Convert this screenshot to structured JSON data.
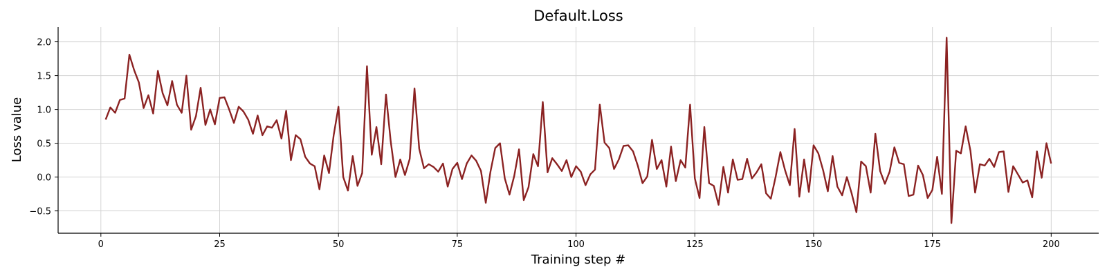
{
  "chart_data": {
    "type": "line",
    "title": "Default.Loss",
    "xlabel": "Training step #",
    "ylabel": "Loss value",
    "xlim": [
      -9,
      210
    ],
    "ylim": [
      -0.83,
      2.22
    ],
    "xticks": [
      0,
      25,
      50,
      75,
      100,
      125,
      150,
      175,
      200
    ],
    "yticks": [
      -0.5,
      0.0,
      0.5,
      1.0,
      1.5,
      2.0
    ],
    "xtick_labels": [
      "0",
      "25",
      "50",
      "75",
      "100",
      "125",
      "150",
      "175",
      "200"
    ],
    "ytick_labels": [
      "−0.5",
      "0.0",
      "0.5",
      "1.0",
      "1.5",
      "2.0"
    ],
    "grid": true,
    "line_color": "#8b2222",
    "series": [
      {
        "x": [
          1,
          2,
          3,
          4,
          5,
          6,
          7,
          8,
          9,
          10,
          11,
          12,
          13,
          14,
          15,
          16,
          17,
          18,
          19,
          20,
          21,
          22,
          23,
          24,
          25,
          26,
          27,
          28,
          29,
          30,
          31,
          32,
          33,
          34,
          35,
          36,
          37,
          38,
          39,
          40,
          41,
          42,
          43,
          44,
          45,
          46,
          47,
          48,
          49,
          50,
          51,
          52,
          53,
          54,
          55,
          56,
          57,
          58,
          59,
          60,
          61,
          62,
          63,
          64,
          65,
          66,
          67,
          68,
          69,
          70,
          71,
          72,
          73,
          74,
          75,
          76,
          77,
          78,
          79,
          80,
          81,
          82,
          83,
          84,
          85,
          86,
          87,
          88,
          89,
          90,
          91,
          92,
          93,
          94,
          95,
          96,
          97,
          98,
          99,
          100,
          101,
          102,
          103,
          104,
          105,
          106,
          107,
          108,
          109,
          110,
          111,
          112,
          113,
          114,
          115,
          116,
          117,
          118,
          119,
          120,
          121,
          122,
          123,
          124,
          125,
          126,
          127,
          128,
          129,
          130,
          131,
          132,
          133,
          134,
          135,
          136,
          137,
          138,
          139,
          140,
          141,
          142,
          143,
          144,
          145,
          146,
          147,
          148,
          149,
          150,
          151,
          152,
          153,
          154,
          155,
          156,
          157,
          158,
          159,
          160,
          161,
          162,
          163,
          164,
          165,
          166,
          167,
          168,
          169,
          170,
          171,
          172,
          173,
          174,
          175,
          176,
          177,
          178,
          179,
          180,
          181,
          182,
          183,
          184,
          185,
          186,
          187,
          188,
          189,
          190,
          191,
          192,
          193,
          194,
          195,
          196,
          197,
          198,
          199,
          200
        ],
        "values": [
          0.85,
          1.03,
          0.95,
          1.14,
          1.16,
          1.81,
          1.58,
          1.4,
          1.02,
          1.21,
          0.94,
          1.57,
          1.24,
          1.06,
          1.42,
          1.07,
          0.95,
          1.5,
          0.7,
          0.9,
          1.32,
          0.77,
          1.0,
          0.78,
          1.17,
          1.18,
          1.0,
          0.8,
          1.04,
          0.97,
          0.85,
          0.64,
          0.91,
          0.62,
          0.75,
          0.73,
          0.84,
          0.57,
          0.98,
          0.25,
          0.62,
          0.56,
          0.3,
          0.2,
          0.16,
          -0.18,
          0.32,
          0.06,
          0.62,
          1.04,
          0.0,
          -0.2,
          0.31,
          -0.13,
          0.06,
          1.64,
          0.33,
          0.74,
          0.19,
          1.22,
          0.53,
          0.0,
          0.26,
          0.03,
          0.27,
          1.31,
          0.42,
          0.13,
          0.19,
          0.15,
          0.08,
          0.2,
          -0.14,
          0.12,
          0.21,
          -0.03,
          0.2,
          0.32,
          0.24,
          0.09,
          -0.38,
          0.08,
          0.43,
          0.5,
          -0.02,
          -0.26,
          0.02,
          0.41,
          -0.34,
          -0.15,
          0.34,
          0.16,
          1.11,
          0.07,
          0.28,
          0.19,
          0.09,
          0.25,
          0.0,
          0.16,
          0.08,
          -0.12,
          0.04,
          0.11,
          1.07,
          0.51,
          0.43,
          0.12,
          0.26,
          0.46,
          0.47,
          0.38,
          0.17,
          -0.09,
          0.01,
          0.55,
          0.12,
          0.25,
          -0.14,
          0.45,
          -0.06,
          0.25,
          0.14,
          1.07,
          -0.02,
          -0.31,
          0.74,
          -0.09,
          -0.13,
          -0.41,
          0.15,
          -0.23,
          0.26,
          -0.04,
          -0.03,
          0.27,
          -0.02,
          0.07,
          0.19,
          -0.24,
          -0.32,
          0.0,
          0.37,
          0.1,
          -0.12,
          0.71,
          -0.29,
          0.26,
          -0.22,
          0.47,
          0.35,
          0.1,
          -0.21,
          0.31,
          -0.14,
          -0.27,
          0.0,
          -0.24,
          -0.52,
          0.23,
          0.16,
          -0.23,
          0.64,
          0.09,
          -0.1,
          0.08,
          0.44,
          0.21,
          0.19,
          -0.28,
          -0.26,
          0.17,
          0.03,
          -0.31,
          -0.19,
          0.3,
          -0.25,
          2.06,
          -0.68,
          0.39,
          0.35,
          0.75,
          0.39,
          -0.23,
          0.19,
          0.17,
          0.27,
          0.15,
          0.37,
          0.38,
          -0.22,
          0.16,
          0.04,
          -0.08,
          -0.05,
          -0.3,
          0.38,
          -0.01,
          0.5,
          0.2
        ]
      }
    ]
  }
}
